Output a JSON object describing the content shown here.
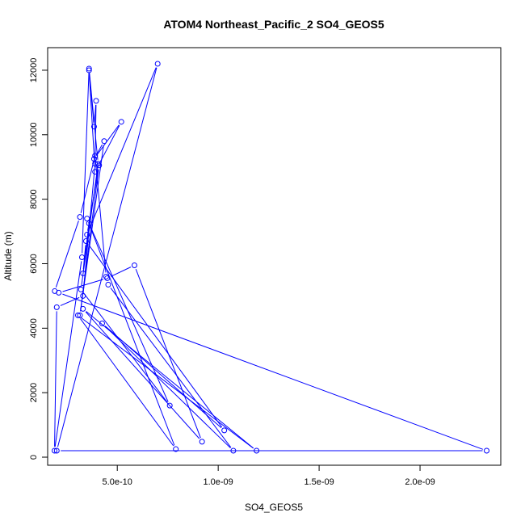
{
  "chart_data": {
    "type": "line",
    "title": "ATOM4 Northeast_Pacific_2 SO4_GEOS5",
    "xlabel": "SO4_GEOS5",
    "ylabel": "Altitude (m)",
    "xlim": [
      1.55e-10,
      2.4e-09
    ],
    "ylim": [
      -250,
      12700
    ],
    "x_ticks": [
      5e-10,
      1e-09,
      1.5e-09,
      2e-09
    ],
    "x_tick_labels": [
      "5.0e-10",
      "1.0e-09",
      "1.5e-09",
      "2.0e-09"
    ],
    "y_ticks": [
      0,
      2000,
      4000,
      6000,
      8000,
      10000,
      12000
    ],
    "y_tick_labels": [
      "0",
      "2000",
      "4000",
      "6000",
      "8000",
      "10000",
      "12000"
    ],
    "grid": false,
    "color": "#0000ff",
    "series": [
      {
        "x": [
          1.9e-10,
          3.15e-10,
          3.9e-10,
          4.45e-10,
          4.55e-10,
          1.075e-09,
          4.25e-10,
          1.03e-09,
          3.45e-10,
          3.3e-10,
          3.6e-10,
          7.6e-10,
          3.2e-10,
          4.05e-10,
          3.6e-10,
          3.25e-10,
          1.89e-10,
          2e-10,
          3.3e-10,
          3.9e-10,
          3.95e-10,
          3.85e-10,
          3.6e-10,
          3.9e-10,
          5.2e-10,
          3.85e-10,
          4.35e-10,
          3.15e-10,
          4.1e-10,
          3.5e-10,
          7e-10,
          2e-10,
          2.33e-09,
          2.1e-10,
          4.5e-10,
          5.85e-10,
          9.2e-10,
          3.3e-10,
          1.19e-09,
          3.05e-10,
          7.9e-10,
          3.5e-10
        ],
        "y": [
          5150,
          7450,
          9350,
          5600,
          5350,
          200,
          4150,
          830,
          6700,
          5700,
          7250,
          1600,
          5200,
          9100,
          12050,
          6200,
          200,
          4650,
          5000,
          9100,
          11050,
          10250,
          12000,
          8850,
          10400,
          9250,
          9800,
          4400,
          9050,
          6900,
          12200,
          200,
          200,
          5100,
          5550,
          5950,
          480,
          4600,
          200,
          4400,
          250,
          7400
        ]
      }
    ]
  }
}
